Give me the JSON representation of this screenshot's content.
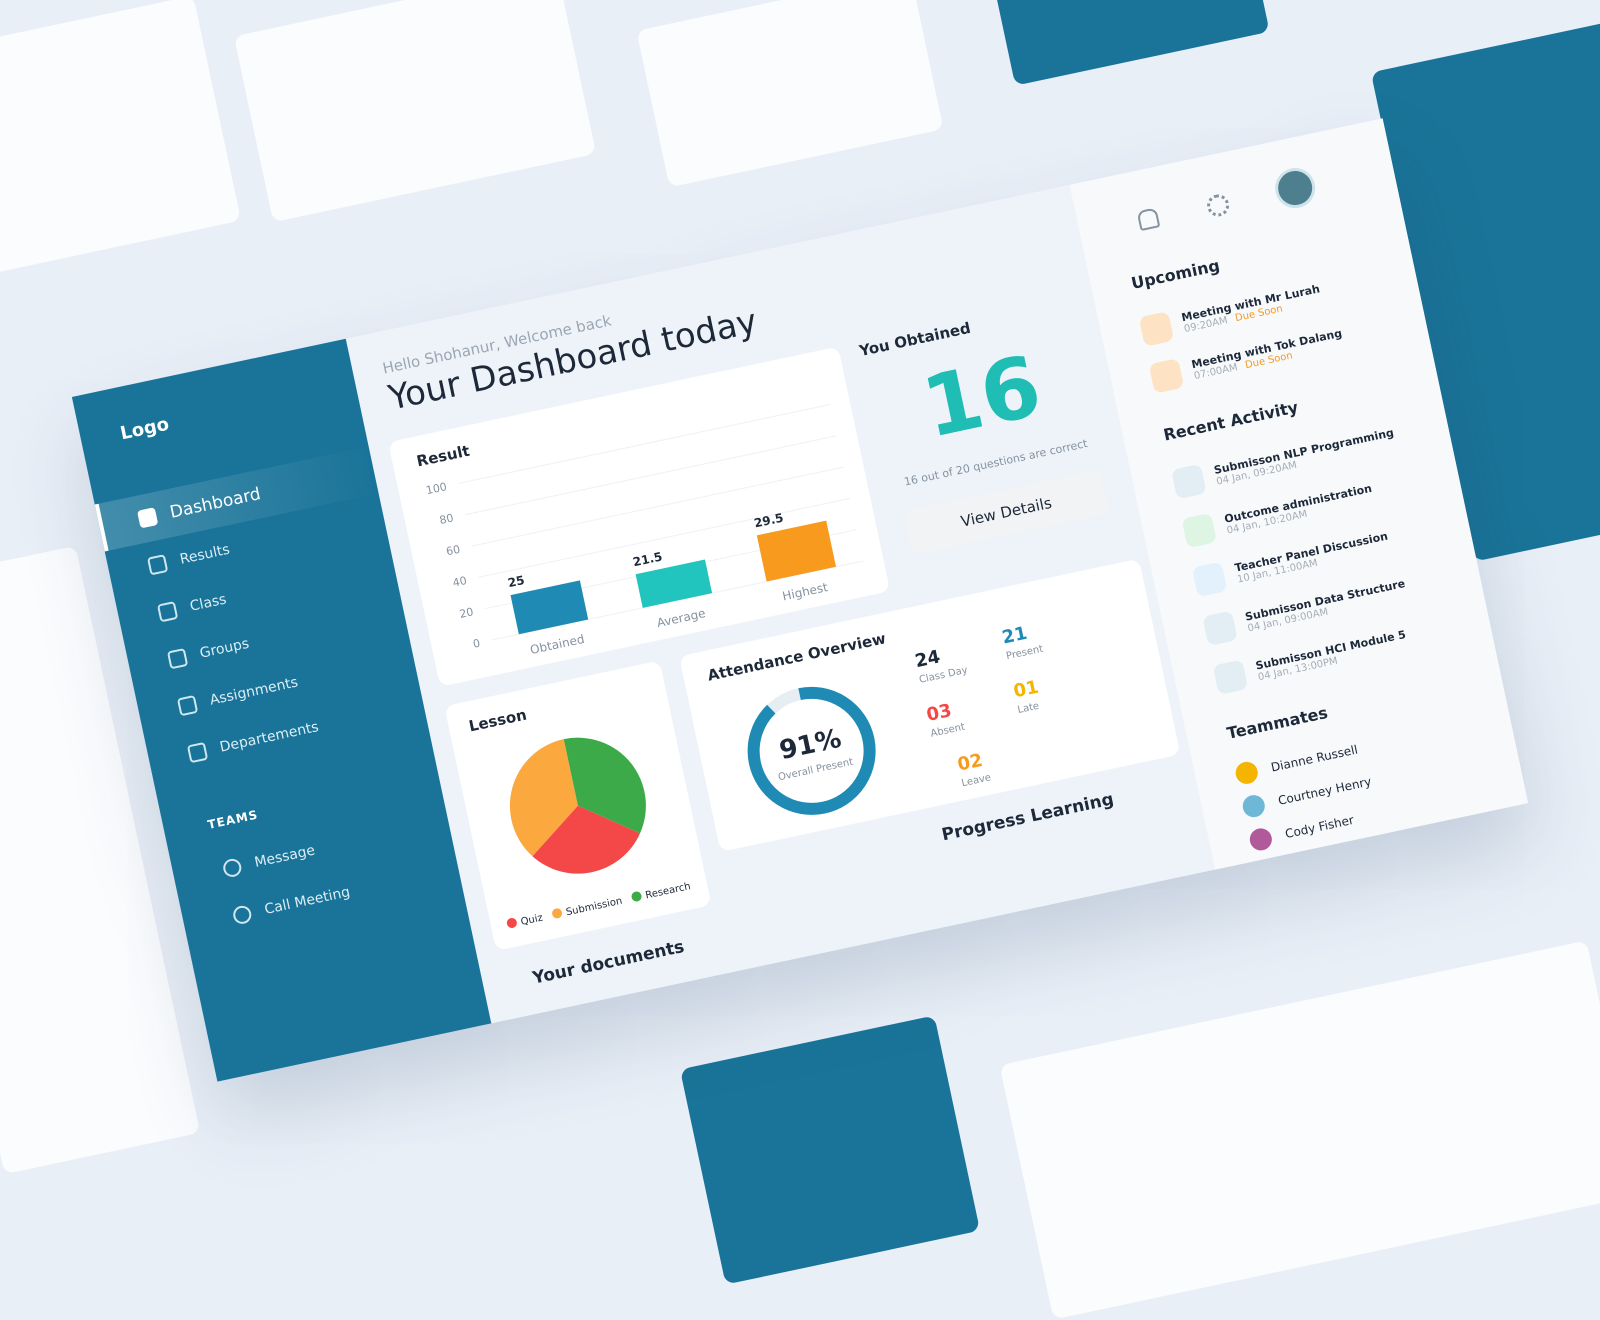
{
  "sidebar": {
    "logo": "Logo",
    "nav": [
      "Dashboard",
      "Results",
      "Class",
      "Groups",
      "Assignments",
      "Departements"
    ],
    "section": "TEAMS",
    "team_nav": [
      "Message",
      "Call Meeting"
    ]
  },
  "header": {
    "greeting": "Hello Shohanur, Welcome back",
    "title": "Your Dashboard today"
  },
  "result_chart": {
    "type": "bar",
    "title": "Result",
    "categories": [
      "Obtained",
      "Average",
      "Highest"
    ],
    "values": [
      25,
      21.5,
      29.5
    ],
    "colors": [
      "#1f8bb5",
      "#22c5bd",
      "#f79a1e"
    ],
    "ylim": [
      0,
      100
    ],
    "yticks": [
      0,
      20,
      40,
      60,
      80,
      100
    ],
    "grid": true
  },
  "you_obtained": {
    "title": "You Obtained",
    "score": "16",
    "caption": "16 out of 20 questions are correct",
    "button": "View Details"
  },
  "lesson": {
    "type": "pie",
    "title": "Lesson",
    "categories": [
      "Quiz",
      "Submission",
      "Research"
    ],
    "values": [
      30,
      35,
      35
    ],
    "colors": [
      "#f44848",
      "#fba93f",
      "#3caa48"
    ]
  },
  "attendance": {
    "title": "Attendance Overview",
    "overall": {
      "value": 91,
      "label": "91%"
    },
    "overall_label": "Overall Present",
    "stats": [
      {
        "value": "24",
        "label": "Class Day"
      },
      {
        "value": "03",
        "label": "Absent"
      },
      {
        "value": "02",
        "label": "Leave"
      },
      {
        "value": "21",
        "label": "Present"
      },
      {
        "value": "01",
        "label": "Late"
      }
    ]
  },
  "progress_learning": "Progress Learning",
  "documents": "Your documents",
  "upcoming": {
    "title": "Upcoming",
    "items": [
      {
        "title": "Meeting with Mr Lurah",
        "time": "09:20AM",
        "status": "Due Soon"
      },
      {
        "title": "Meeting with Tok Dalang",
        "time": "07:00AM",
        "status": "Due Soon"
      }
    ]
  },
  "recent_activity": {
    "title": "Recent Activity",
    "items": [
      {
        "title": "Submisson NLP Programming",
        "time": "04 Jan, 09:20AM"
      },
      {
        "title": "Outcome administration",
        "time": "04 Jan, 10:20AM"
      },
      {
        "title": "Teacher Panel Discussion",
        "time": "10 Jan, 11:00AM"
      },
      {
        "title": "Submisson Data Structure",
        "time": "04 Jan, 09:00AM"
      },
      {
        "title": "Submisson HCI Module 5",
        "time": "04 Jan, 13:00PM"
      }
    ]
  },
  "teammates": {
    "title": "Teammates",
    "names": [
      "Dianne Russell",
      "Courtney Henry",
      "Cody Fisher"
    ]
  }
}
